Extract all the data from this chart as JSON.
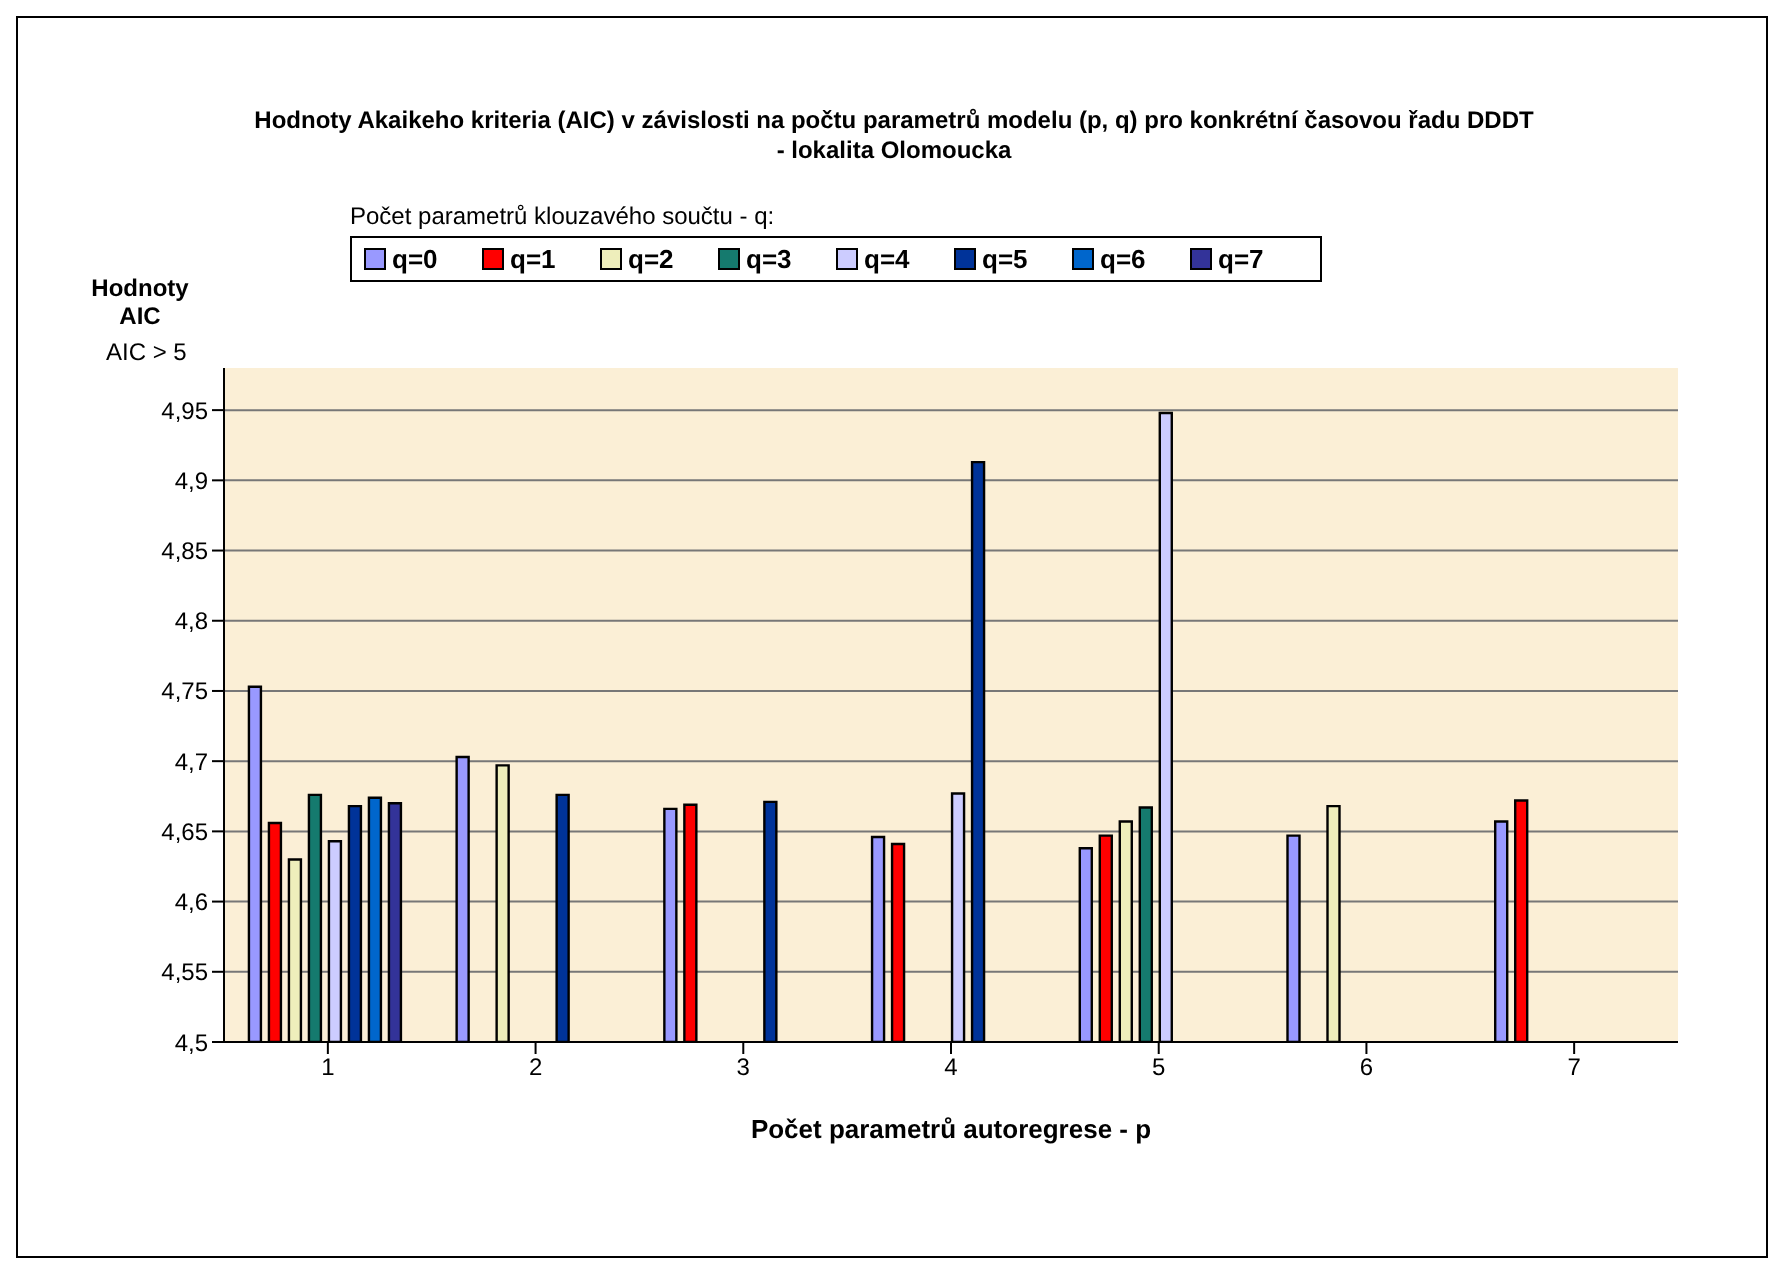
{
  "chart_data": {
    "type": "bar",
    "title": "Hodnoty Akaikeho kriteria (AIC) v závislosti na počtu parametrů modelu (p, q) pro konkrétní časovou řadu DDDT",
    "subtitle": "- lokalita Olomoucka",
    "xlabel": "Počet parametrů autoregrese - p",
    "ylabel": "Hodnoty AIC",
    "legend_title": "Počet parametrů klouzavého součtu - q:",
    "annotations": [
      "AIC > 5"
    ],
    "categories": [
      "1",
      "2",
      "3",
      "4",
      "5",
      "6",
      "7"
    ],
    "series": [
      {
        "name": "q=0",
        "color": "#9999ff",
        "values": [
          4.753,
          4.703,
          4.666,
          4.646,
          4.638,
          4.647,
          4.657
        ]
      },
      {
        "name": "q=1",
        "color": "#ff0000",
        "values": [
          4.656,
          null,
          4.669,
          4.641,
          4.647,
          null,
          4.672
        ]
      },
      {
        "name": "q=2",
        "color": "#eeeebb",
        "values": [
          4.63,
          4.697,
          null,
          null,
          4.657,
          4.668,
          null
        ]
      },
      {
        "name": "q=3",
        "color": "#157a6e",
        "values": [
          4.676,
          null,
          null,
          null,
          4.667,
          null,
          null
        ]
      },
      {
        "name": "q=4",
        "color": "#ccccff",
        "values": [
          4.643,
          null,
          null,
          4.677,
          4.948,
          null,
          null
        ]
      },
      {
        "name": "q=5",
        "color": "#003399",
        "values": [
          4.668,
          4.676,
          4.671,
          4.913,
          null,
          null,
          null
        ]
      },
      {
        "name": "q=6",
        "color": "#0066cc",
        "values": [
          4.674,
          null,
          null,
          null,
          null,
          null,
          null
        ]
      },
      {
        "name": "q=7",
        "color": "#333399",
        "values": [
          4.67,
          null,
          null,
          null,
          null,
          null,
          null
        ]
      }
    ],
    "ylim": [
      4.5,
      4.98
    ],
    "yticks": [
      {
        "value": 4.5,
        "label": "4,5"
      },
      {
        "value": 4.55,
        "label": "4,55"
      },
      {
        "value": 4.6,
        "label": "4,6"
      },
      {
        "value": 4.65,
        "label": "4,65"
      },
      {
        "value": 4.7,
        "label": "4,7"
      },
      {
        "value": 4.75,
        "label": "4,75"
      },
      {
        "value": 4.8,
        "label": "4,8"
      },
      {
        "value": 4.85,
        "label": "4,85"
      },
      {
        "value": 4.9,
        "label": "4,9"
      },
      {
        "value": 4.95,
        "label": "4,95"
      }
    ],
    "grid": "y",
    "legend": "top"
  }
}
